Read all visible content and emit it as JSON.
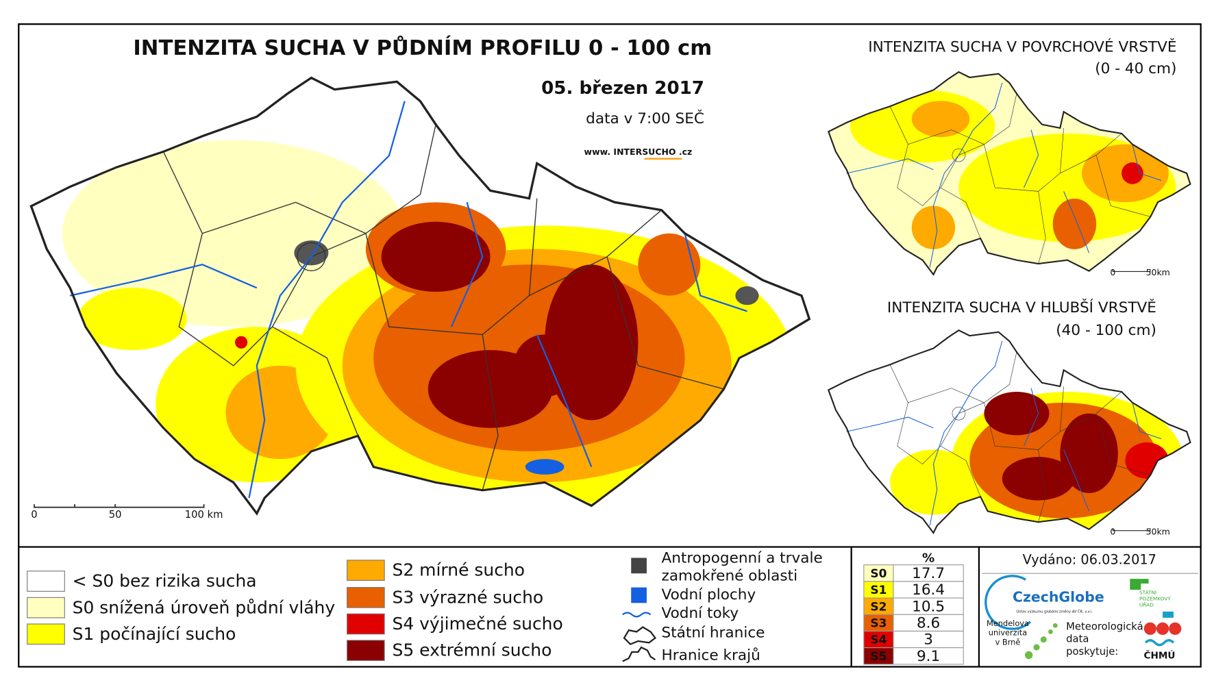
{
  "main_map": {
    "title": "INTENZITA SUCHA V PŮDNÍM PROFILU 0 - 100 cm",
    "date": "05. březen 2017",
    "data_time": "data v 7:00 SEČ",
    "website": "www. INTERSUCHO .cz",
    "scale_labels": [
      "0",
      "50",
      "100 km"
    ]
  },
  "inset_maps": [
    {
      "title": "INTENZITA SUCHA V POVRCHOVÉ VRSTVĚ",
      "subtitle": "(0 - 40 cm)",
      "scale_labels": [
        "0",
        "50km"
      ]
    },
    {
      "title": "INTENZITA SUCHA V HLUBŠÍ VRSTVĚ",
      "subtitle": "(40 - 100 cm)",
      "scale_labels": [
        "0",
        "50km"
      ]
    }
  ],
  "legend": {
    "classes": [
      {
        "label": "< S0 bez rizika sucha",
        "color": "#ffffff"
      },
      {
        "label": "S0 snížená úroveň půdní vláhy",
        "color": "#ffffc0"
      },
      {
        "label": "S1 počínající sucho",
        "color": "#ffff00"
      },
      {
        "label": "S2 mírné sucho",
        "color": "#ffaa00"
      },
      {
        "label": "S3 výrazné sucho",
        "color": "#e86000"
      },
      {
        "label": "S4 výjimečné sucho",
        "color": "#e00000"
      },
      {
        "label": "S5 extrémní sucho",
        "color": "#8b0000"
      }
    ],
    "symbols": {
      "anthropogenic": [
        "Antropogenní a trvale",
        "zamokřené oblasti"
      ],
      "water_bodies": "Vodní plochy",
      "rivers": "Vodní toky",
      "state_border": "Státní hranice",
      "region_border": "Hranice krajů"
    }
  },
  "table": {
    "header": "%",
    "rows": [
      {
        "class": "S0",
        "value": 17.7,
        "color": "#ffffc0"
      },
      {
        "class": "S1",
        "value": 16.4,
        "color": "#ffff00"
      },
      {
        "class": "S2",
        "value": 10.5,
        "color": "#ffaa00"
      },
      {
        "class": "S3",
        "value": 8.6,
        "color": "#e86000"
      },
      {
        "class": "S4",
        "value": 3.0,
        "color": "#e00000"
      },
      {
        "class": "S5",
        "value": 9.1,
        "color": "#8b0000"
      }
    ]
  },
  "footer": {
    "issued": "Vydáno: 06.03.2017",
    "czechglobe": "CzechGlobe",
    "czechglobe_sub": "Ústav výzkumu globální změny AV ČR, v.v.i.",
    "spu": [
      "STÁTNÍ",
      "POZEMKOVÝ",
      "ÚŘAD"
    ],
    "mendelu": [
      "Mendelova",
      "univerzita",
      "v Brně"
    ],
    "chmu_note": [
      "Meteorologická",
      "data",
      "poskytuje:"
    ],
    "chmu": "ČHMÚ"
  }
}
